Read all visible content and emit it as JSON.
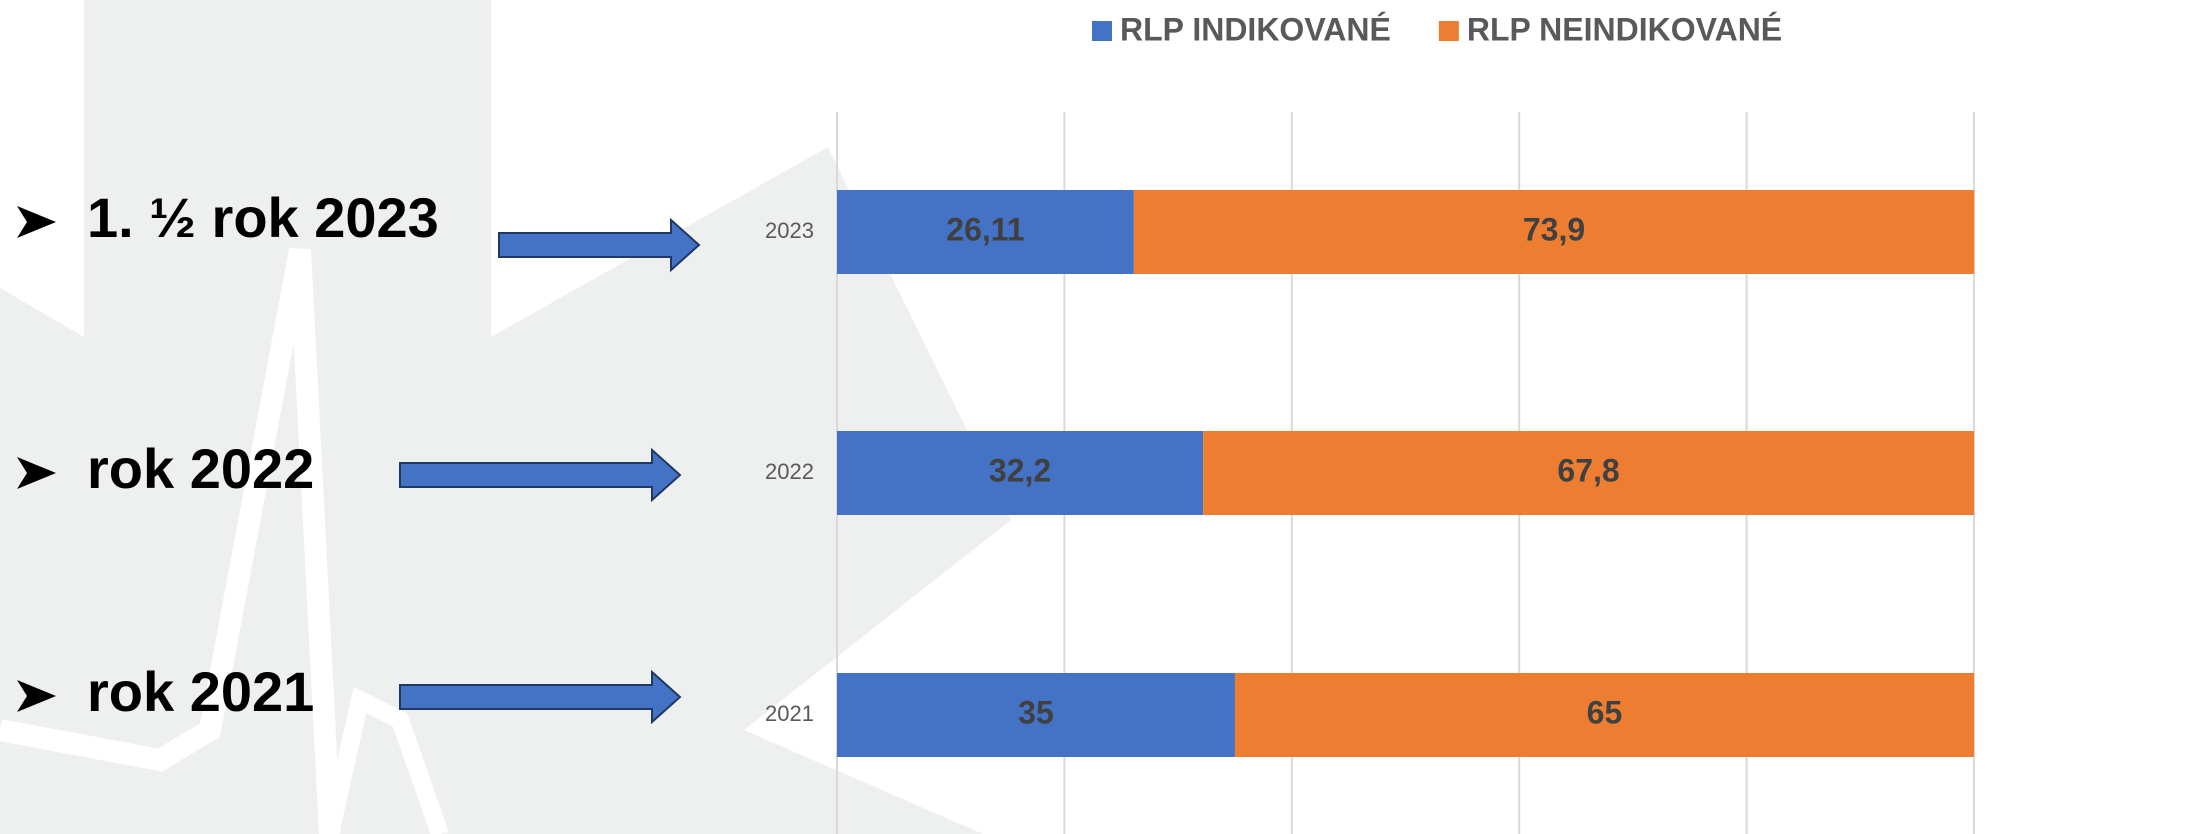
{
  "chart_data": {
    "type": "stacked_barh",
    "categories": [
      "2023",
      "2022",
      "2021"
    ],
    "series": [
      {
        "name": "RLP INDIKOVANÉ",
        "color": "#4472c4",
        "values": [
          26.11,
          32.2,
          35
        ],
        "value_labels": [
          "26,11",
          "32,2",
          "35"
        ]
      },
      {
        "name": "RLP NEINDIKOVANÉ",
        "color": "#ed7d31",
        "values": [
          73.9,
          67.8,
          65
        ],
        "value_labels": [
          "73,9",
          "67,8",
          "65"
        ]
      }
    ],
    "xlim": [
      0,
      100
    ],
    "xticks": [
      0,
      20,
      40,
      60,
      80,
      100
    ],
    "grid": true,
    "legend": "top",
    "annotations": [
      "1. ½ rok 2023",
      "rok 2022",
      "rok 2021"
    ]
  }
}
